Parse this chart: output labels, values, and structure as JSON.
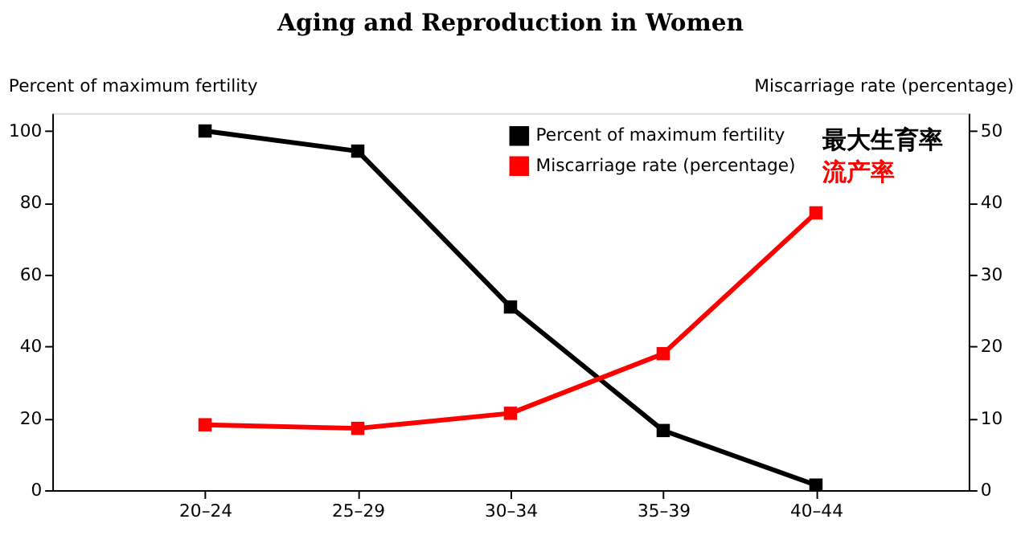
{
  "chart_data": {
    "type": "line",
    "title": "Aging and Reproduction in Women",
    "ylabel": "Percent of maximum fertility",
    "y2label": "Miscarriage rate (percentage)",
    "categories": [
      "20–24",
      "25–29",
      "30–34",
      "35–39",
      "40–44"
    ],
    "series": [
      {
        "name": "Percent of maximum fertility",
        "color": "#000000",
        "values": [
          100,
          94.4,
          51,
          16.6,
          1.4
        ]
      },
      {
        "name": "Miscarriage rate (percentage)",
        "color": "#ff0000",
        "values": [
          9.1,
          8.6,
          10.7,
          19,
          38.6
        ],
        "axis": "y2"
      }
    ],
    "ylim": [
      0,
      105
    ],
    "yticks": [
      0,
      20,
      40,
      60,
      80,
      100
    ],
    "y2lim": [
      0,
      52.5
    ],
    "y2ticks": [
      0,
      10,
      20,
      30,
      40,
      50
    ],
    "annotations": [
      "最大生育率",
      "流产率"
    ],
    "marker": "square",
    "line_style": "solid",
    "grid": false,
    "legend": "top right"
  }
}
